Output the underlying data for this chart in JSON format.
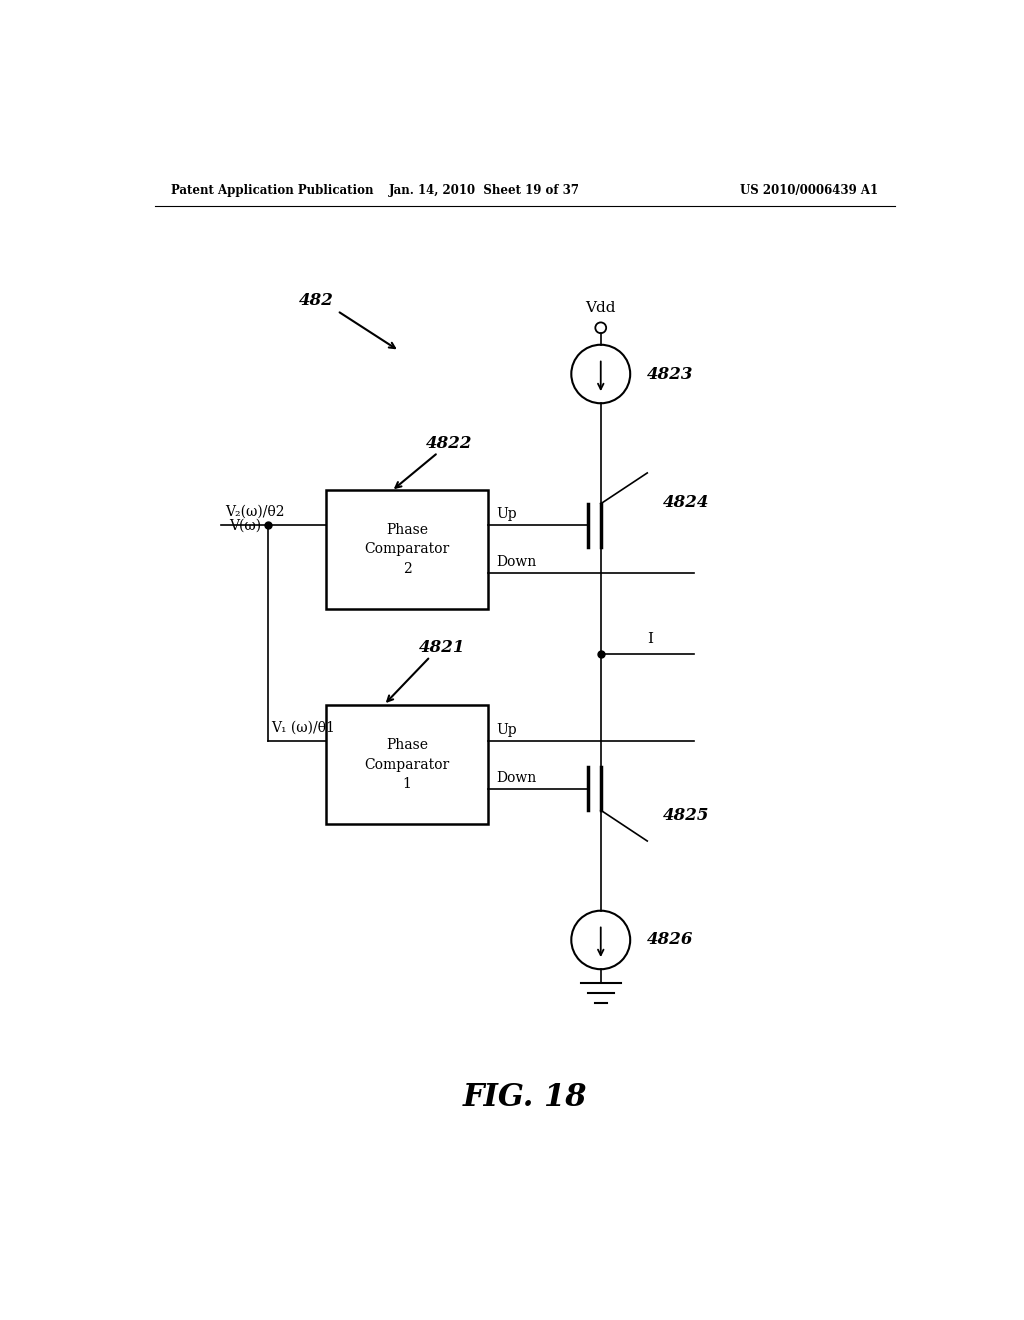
{
  "bg_color": "#ffffff",
  "header_left": "Patent Application Publication",
  "header_mid": "Jan. 14, 2010  Sheet 19 of 37",
  "header_right": "US 2010/0006439 A1",
  "fig_label": "FIG. 18",
  "label_482": "482",
  "label_4821": "4821",
  "label_4822": "4822",
  "label_4823": "4823",
  "label_4824": "4824",
  "label_4825": "4825",
  "label_4826": "4826",
  "box2_text": "Phase\nComparator\n2",
  "box1_text": "Phase\nComparator\n1",
  "vdd_text": "Vdd",
  "I_text": "I",
  "v2_text": "V₂(ω)/θ2",
  "v1_text": "V₁ (ω)/θ1",
  "vomega_text": "V(ω)"
}
